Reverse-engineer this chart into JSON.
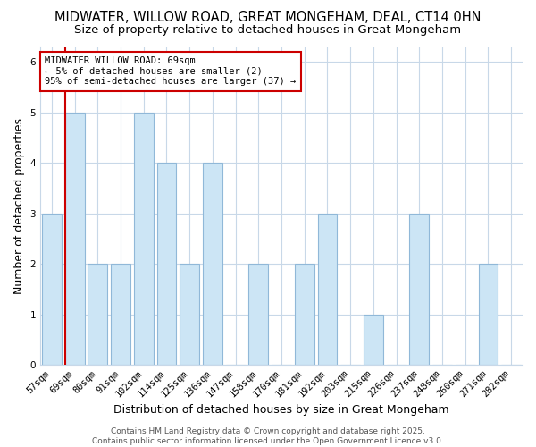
{
  "title1": "MIDWATER, WILLOW ROAD, GREAT MONGEHAM, DEAL, CT14 0HN",
  "title2": "Size of property relative to detached houses in Great Mongeham",
  "xlabel": "Distribution of detached houses by size in Great Mongeham",
  "ylabel": "Number of detached properties",
  "categories": [
    "57sqm",
    "69sqm",
    "80sqm",
    "91sqm",
    "102sqm",
    "114sqm",
    "125sqm",
    "136sqm",
    "147sqm",
    "158sqm",
    "170sqm",
    "181sqm",
    "192sqm",
    "203sqm",
    "215sqm",
    "226sqm",
    "237sqm",
    "248sqm",
    "260sqm",
    "271sqm",
    "282sqm"
  ],
  "values": [
    3,
    5,
    2,
    2,
    5,
    4,
    2,
    4,
    0,
    2,
    0,
    2,
    3,
    0,
    1,
    0,
    3,
    0,
    0,
    2,
    0
  ],
  "highlighted_index": 1,
  "bar_color": "#cce5f5",
  "bar_edge_color": "#90b8d8",
  "annotation_text": "MIDWATER WILLOW ROAD: 69sqm\n← 5% of detached houses are smaller (2)\n95% of semi-detached houses are larger (37) →",
  "annotation_box_facecolor": "#ffffff",
  "annotation_box_edgecolor": "#cc0000",
  "annotation_text_color": "#000000",
  "red_line_color": "#cc0000",
  "ylim": [
    0,
    6.3
  ],
  "yticks": [
    0,
    1,
    2,
    3,
    4,
    5,
    6
  ],
  "plot_bg_color": "#ffffff",
  "fig_bg_color": "#ffffff",
  "grid_color": "#c8d8e8",
  "footer_line1": "Contains HM Land Registry data © Crown copyright and database right 2025.",
  "footer_line2": "Contains public sector information licensed under the Open Government Licence v3.0.",
  "title_fontsize": 10.5,
  "subtitle_fontsize": 9.5,
  "axis_label_fontsize": 9,
  "tick_fontsize": 7.5,
  "annotation_fontsize": 7.5,
  "footer_fontsize": 6.5
}
